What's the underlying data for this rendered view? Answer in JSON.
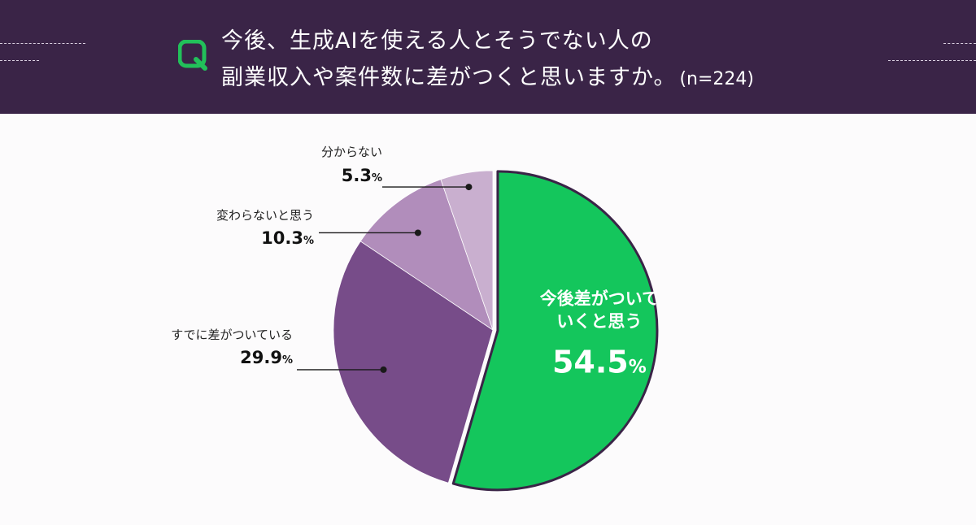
{
  "header": {
    "badge_icon": "q-icon",
    "title_line1": "今後、生成AIを使える人とそうでない人の",
    "title_line2": "副業収入や案件数に差がつくと思いますか。",
    "sample": "(n=224)",
    "colors": {
      "background": "#3a2447",
      "badge": "#22c05a"
    }
  },
  "chart_data": {
    "type": "pie",
    "start": "12 o'clock",
    "direction": "clockwise",
    "unit": "%",
    "slices": [
      {
        "label": "今後差がついていくと思う",
        "label_lines": [
          "今後差がついて",
          "いくと思う"
        ],
        "value": 54.5,
        "value_text": "54.5",
        "color": "#14c65c",
        "highlight": true
      },
      {
        "label": "すでに差がついている",
        "label_lines": [
          "すでに差がついている"
        ],
        "value": 29.9,
        "value_text": "29.9",
        "color": "#774c89"
      },
      {
        "label": "変わらないと思う",
        "label_lines": [
          "変わらないと思う"
        ],
        "value": 10.3,
        "value_text": "10.3",
        "color": "#b18dbb"
      },
      {
        "label": "分からない",
        "label_lines": [
          "分からない"
        ],
        "value": 5.3,
        "value_text": "5.3",
        "color": "#c9afcf"
      }
    ]
  }
}
